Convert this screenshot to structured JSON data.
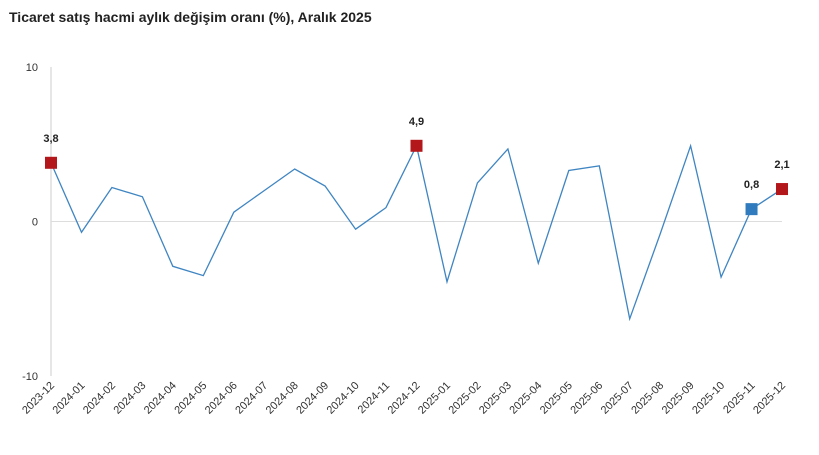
{
  "chart_data": {
    "type": "line",
    "title": "Ticaret satış hacmi aylık değişim oranı (%), Aralık 2025",
    "xlabel": "",
    "ylabel": "",
    "ylim": [
      -10,
      10
    ],
    "yticks": [
      {
        "value": 10,
        "label": "10"
      },
      {
        "value": 0,
        "label": "0"
      },
      {
        "value": -10,
        "label": "-10"
      }
    ],
    "grid": "zero line only",
    "legend": "none",
    "categories": [
      "2023-12",
      "2024-01",
      "2024-02",
      "2024-03",
      "2024-04",
      "2024-05",
      "2024-06",
      "2024-07",
      "2024-08",
      "2024-09",
      "2024-10",
      "2024-11",
      "2024-12",
      "2025-01",
      "2025-02",
      "2025-03",
      "2025-04",
      "2025-05",
      "2025-06",
      "2025-07",
      "2025-08",
      "2025-09",
      "2025-10",
      "2025-11",
      "2025-12"
    ],
    "series": [
      {
        "values": [
          3.8,
          -0.7,
          2.2,
          1.6,
          -2.9,
          -3.5,
          0.6,
          2.0,
          3.4,
          2.3,
          -0.5,
          0.9,
          4.9,
          -3.9,
          2.5,
          4.7,
          -2.7,
          3.3,
          3.6,
          -6.3,
          -0.8,
          4.9,
          -3.6,
          0.8,
          2.1
        ],
        "color": "#3f85c2"
      }
    ],
    "markers": [
      {
        "index": 0,
        "label": "3,8",
        "color": "#b3161b"
      },
      {
        "index": 12,
        "label": "4,9",
        "color": "#b3161b"
      },
      {
        "index": 23,
        "label": "0,8",
        "color": "#2f7bbd"
      },
      {
        "index": 24,
        "label": "2,1",
        "color": "#b3161b"
      }
    ],
    "colors": {
      "line": "#3f85c2",
      "axis": "#cccccc",
      "zero_line": "#dddddd"
    }
  }
}
